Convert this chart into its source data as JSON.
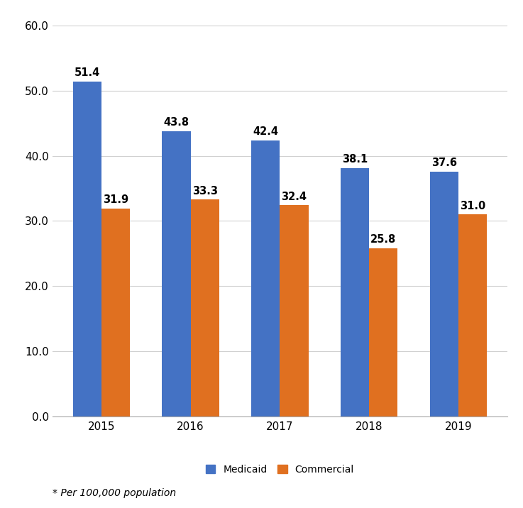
{
  "years": [
    "2015",
    "2016",
    "2017",
    "2018",
    "2019"
  ],
  "medicaid": [
    51.4,
    43.8,
    42.4,
    38.1,
    37.6
  ],
  "commercial": [
    31.9,
    33.3,
    32.4,
    25.8,
    31.0
  ],
  "medicaid_color": "#4472C4",
  "commercial_color": "#E07020",
  "ylim": [
    0,
    60
  ],
  "yticks": [
    0.0,
    10.0,
    20.0,
    30.0,
    40.0,
    50.0,
    60.0
  ],
  "bar_width": 0.32,
  "legend_labels": [
    "Medicaid",
    "Commercial"
  ],
  "footnote": "* Per 100,000 population",
  "background_color": "#ffffff",
  "grid_color": "#d0d0d0",
  "label_fontsize": 10.5,
  "tick_fontsize": 11,
  "legend_fontsize": 10,
  "footnote_fontsize": 10
}
